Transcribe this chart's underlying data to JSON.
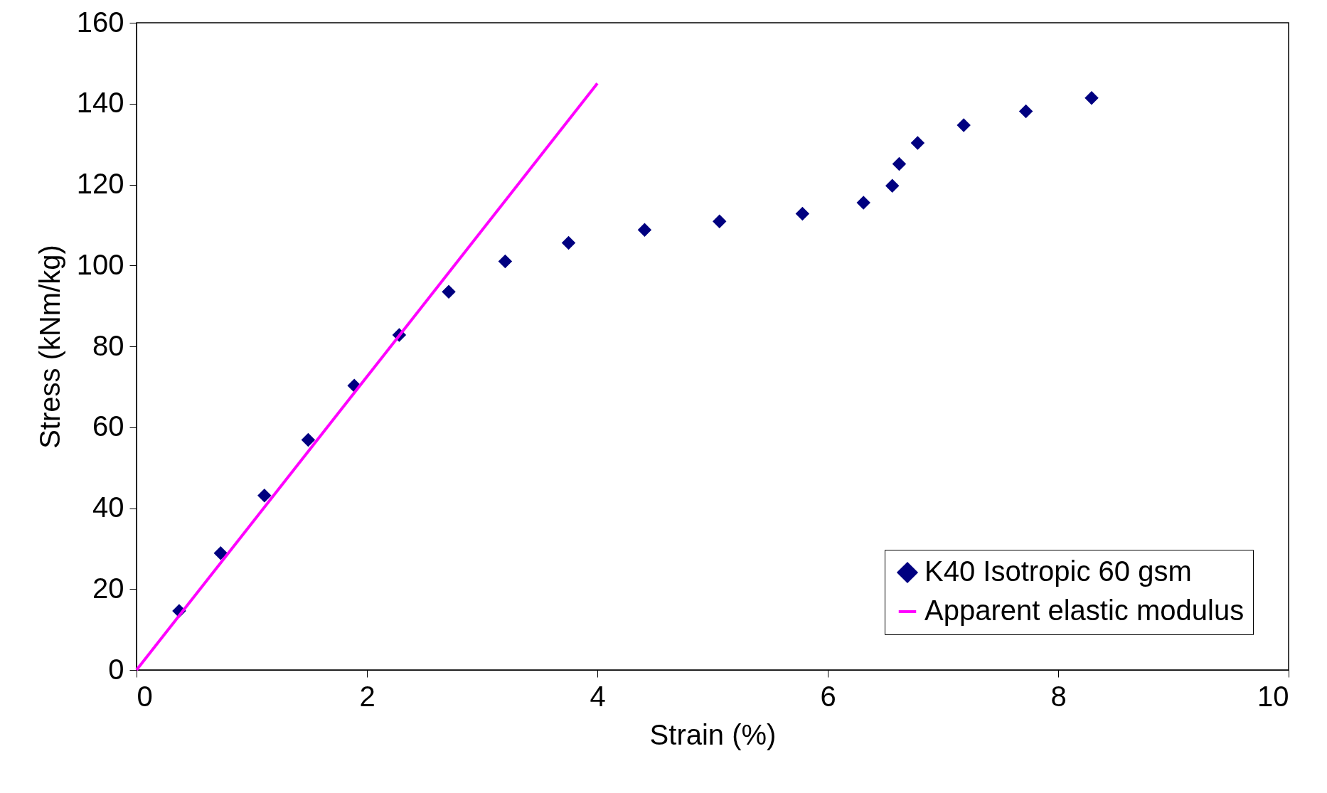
{
  "chart_data": {
    "type": "scatter",
    "xlabel": "Strain (%)",
    "ylabel": "Stress (kNm/kg)",
    "xlim": [
      0,
      10
    ],
    "xticks": [
      0,
      2,
      4,
      6,
      8,
      10
    ],
    "ylim": [
      0,
      160
    ],
    "yticks": [
      0,
      20,
      40,
      60,
      80,
      100,
      120,
      140,
      160
    ],
    "grid": false,
    "legend": "bottom right",
    "series": [
      {
        "name": "K40 Isotropic 60 gsm",
        "color": "#000080",
        "marker": "diamond",
        "x": [
          0.37,
          0.73,
          1.11,
          1.49,
          1.89,
          2.28,
          2.71,
          3.2,
          3.75,
          4.41,
          5.06,
          5.78,
          6.31,
          6.56,
          6.62,
          6.78,
          7.18,
          7.72,
          8.29
        ],
        "values": [
          14.6,
          28.9,
          43.1,
          56.9,
          70.3,
          82.8,
          93.5,
          101,
          105.6,
          108.8,
          110.9,
          112.8,
          115.5,
          119.7,
          125.1,
          130.3,
          134.7,
          138.1,
          141.4
        ]
      },
      {
        "name": "Apparent elastic modulus",
        "color": "#ff00ff",
        "type": "line",
        "marker": "none",
        "line_style": "solid",
        "x": [
          0,
          4
        ],
        "values": [
          0,
          145
        ]
      }
    ]
  }
}
